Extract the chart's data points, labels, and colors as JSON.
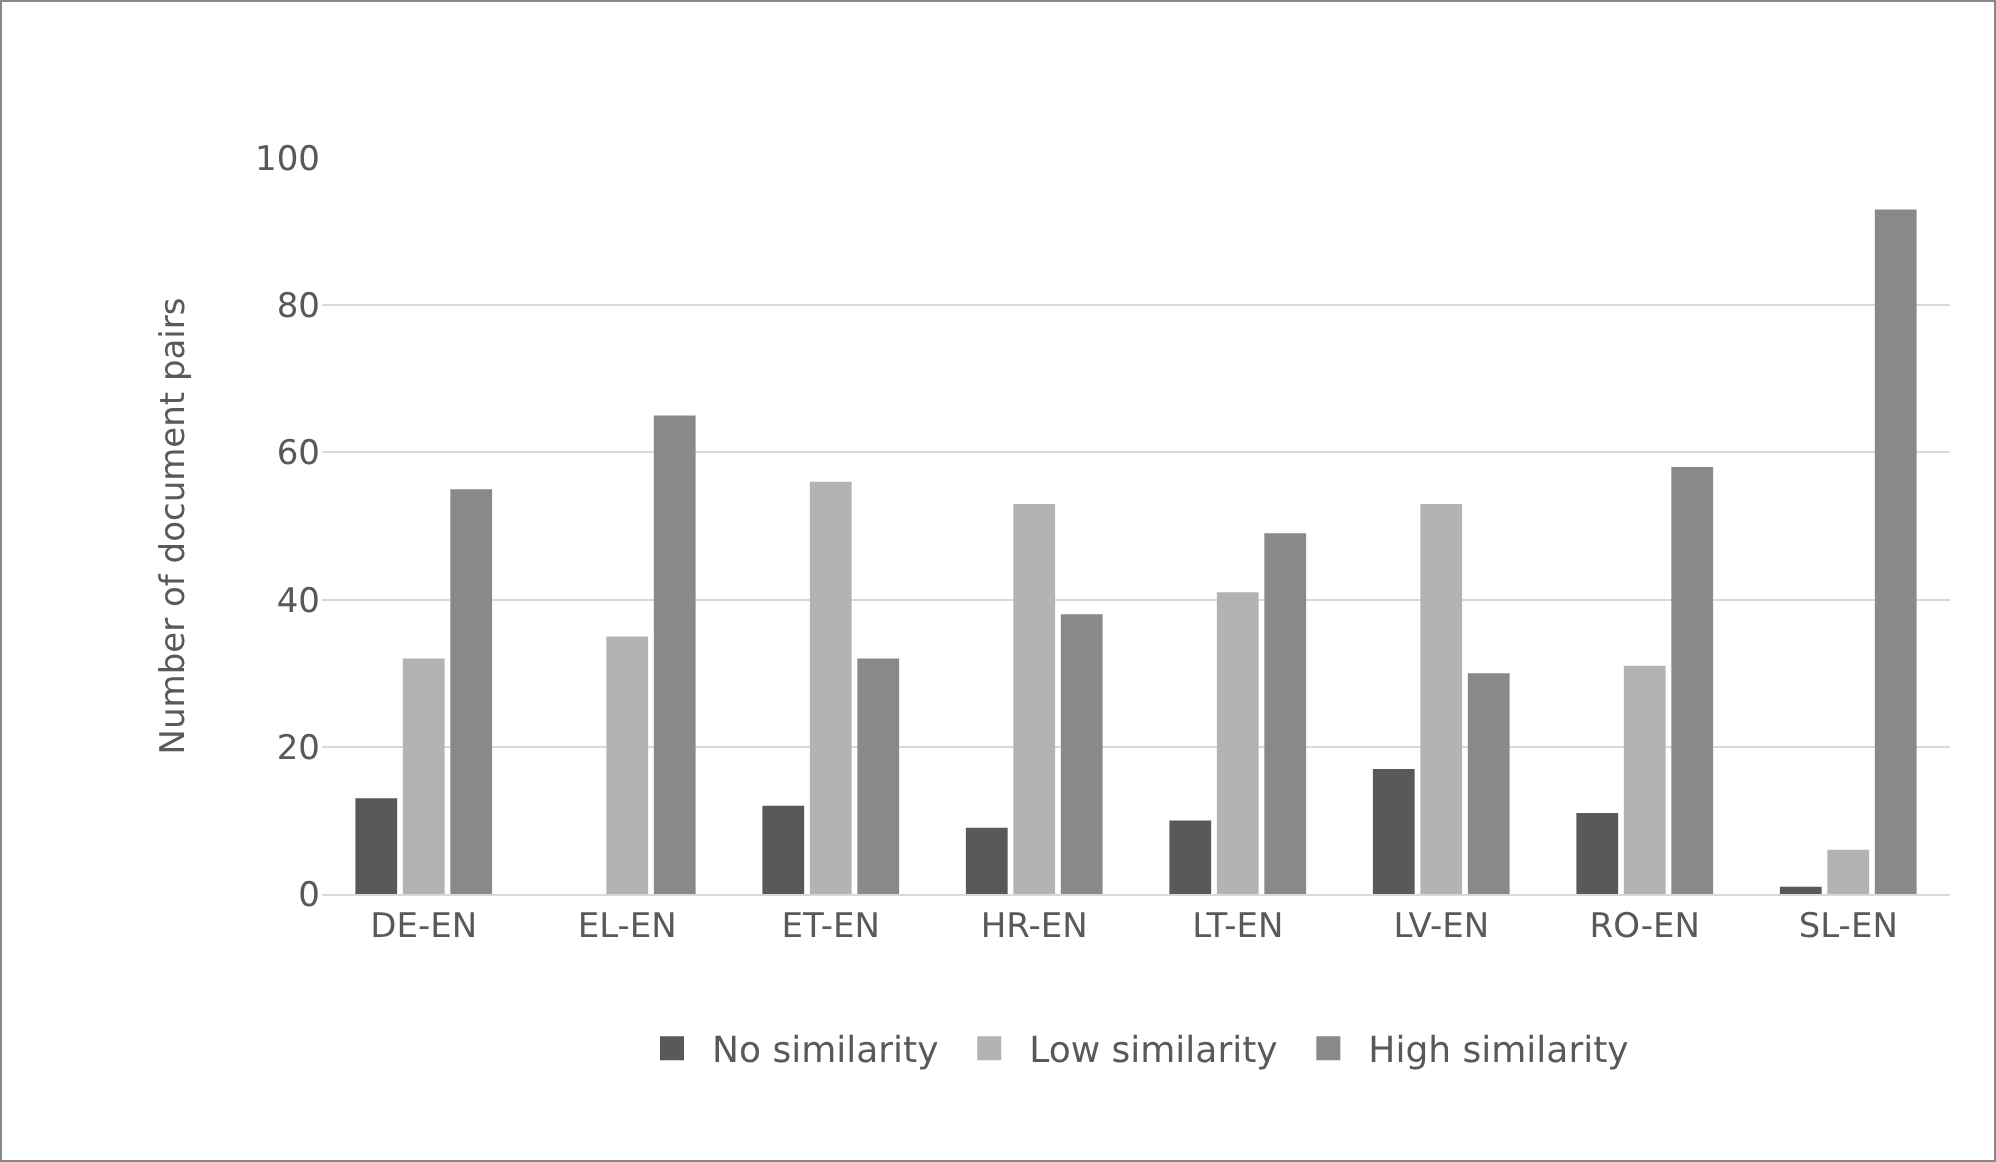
{
  "chart_data": {
    "type": "bar",
    "ylabel": "Number of document pairs",
    "categories": [
      "DE-EN",
      "EL-EN",
      "ET-EN",
      "HR-EN",
      "LT-EN",
      "LV-EN",
      "RO-EN",
      "SL-EN"
    ],
    "series": [
      {
        "name": "No similarity",
        "color": "#595959",
        "values": [
          13,
          0,
          12,
          9,
          10,
          17,
          11,
          1
        ]
      },
      {
        "name": "Low similarity",
        "color": "#b3b3b3",
        "values": [
          32,
          35,
          56,
          53,
          41,
          53,
          31,
          6
        ]
      },
      {
        "name": "High similarity",
        "color": "#898989",
        "values": [
          55,
          65,
          32,
          38,
          49,
          30,
          58,
          93
        ]
      }
    ],
    "ylim": [
      0,
      100
    ],
    "yticks": [
      0,
      20,
      40,
      60,
      80,
      100
    ],
    "grid": "y",
    "legend": "bottom"
  }
}
